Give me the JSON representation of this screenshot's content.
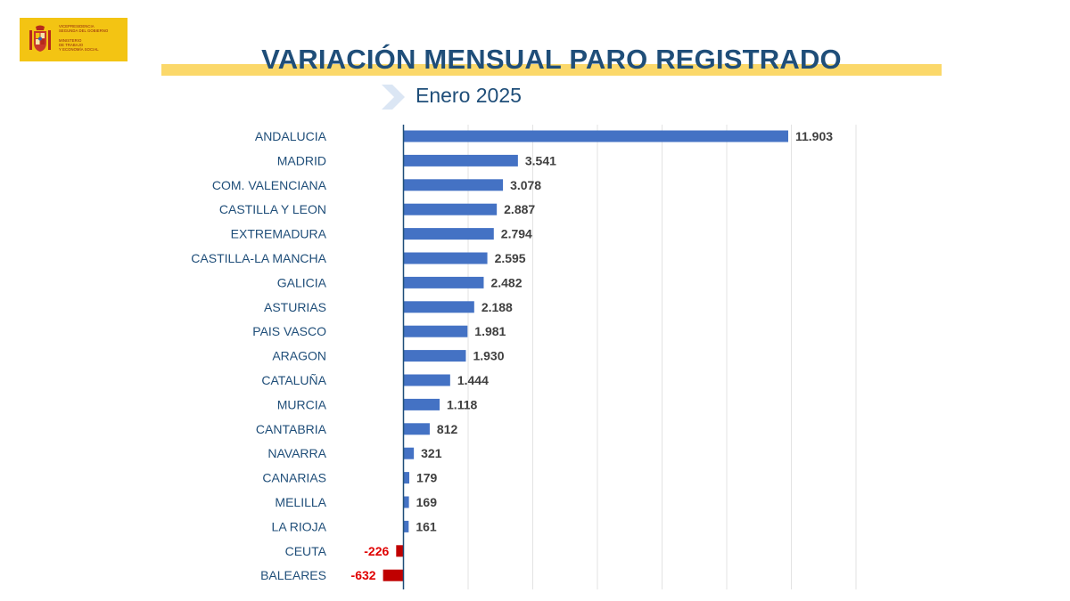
{
  "header": {
    "logo_lines": [
      "VICEPRESIDENCIA",
      "SEGUNDA DEL GOBIERNO",
      "MINISTERIO",
      "DE TRABAJO",
      "Y ECONOMÍA SOCIAL"
    ],
    "logo_icon": "spain-coat-of-arms-icon"
  },
  "chart_data": {
    "type": "bar",
    "orientation": "horizontal",
    "title": "VARIACIÓN MENSUAL PARO REGISTRADO",
    "subtitle": "Enero 2025",
    "categories": [
      "ANDALUCIA",
      "MADRID",
      "COM. VALENCIANA",
      "CASTILLA Y LEON",
      "EXTREMADURA",
      "CASTILLA-LA MANCHA",
      "GALICIA",
      "ASTURIAS",
      "PAIS VASCO",
      "ARAGON",
      "CATALUÑA",
      "MURCIA",
      "CANTABRIA",
      "NAVARRA",
      "CANARIAS",
      "MELILLA",
      "LA RIOJA",
      "CEUTA",
      "BALEARES"
    ],
    "values": [
      11903,
      3541,
      3078,
      2887,
      2794,
      2595,
      2482,
      2188,
      1981,
      1930,
      1444,
      1118,
      812,
      321,
      179,
      169,
      161,
      -226,
      -632
    ],
    "value_labels": [
      "11.903",
      "3.541",
      "3.078",
      "2.887",
      "2.794",
      "2.595",
      "2.482",
      "2.188",
      "1.981",
      "1.930",
      "1.444",
      "1.118",
      "812",
      "321",
      "179",
      "169",
      "161",
      "-226",
      "-632"
    ],
    "xlim": [
      -2000,
      14000
    ],
    "grid": true,
    "legend": "none",
    "colors": {
      "positive": "#4472c4",
      "negative": "#c00000",
      "axis": "#1f4e79",
      "grid": "#e3e3e3",
      "category_text": "#1f4e79"
    }
  }
}
